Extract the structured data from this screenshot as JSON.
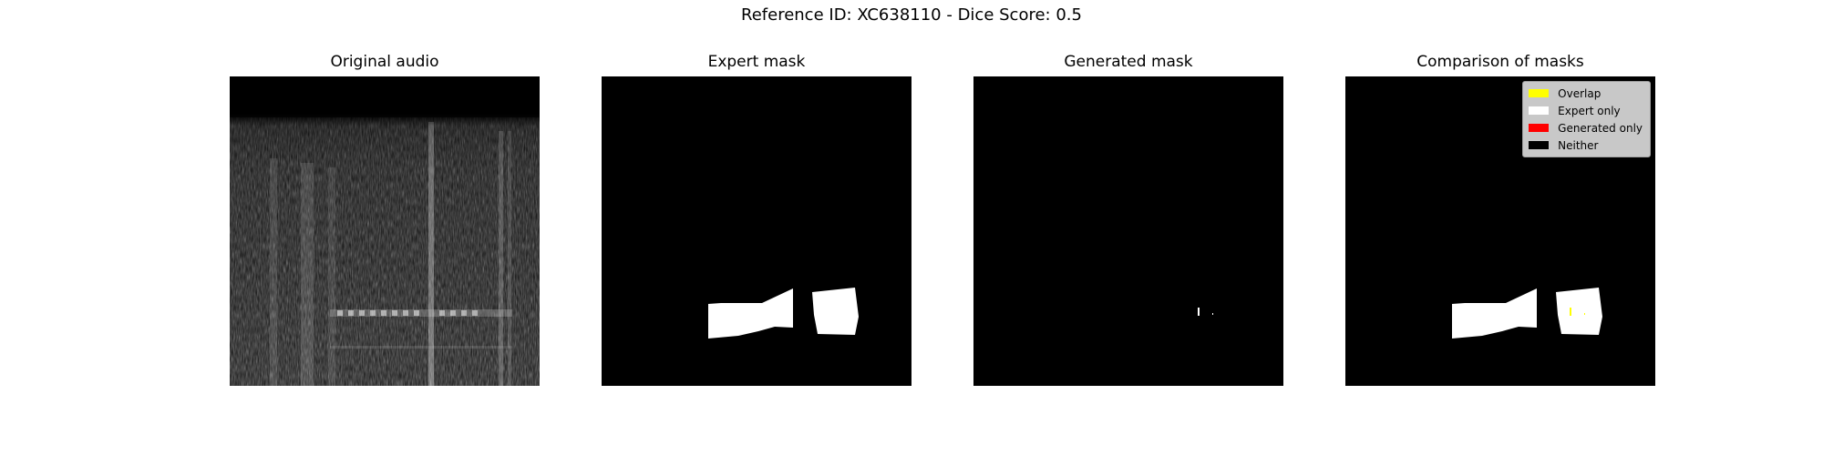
{
  "figure": {
    "title": "Reference ID: XC638110 - Dice Score: 0.5"
  },
  "panels": [
    {
      "title": "Original audio"
    },
    {
      "title": "Expert mask"
    },
    {
      "title": "Generated mask"
    },
    {
      "title": "Comparison of masks"
    }
  ],
  "legend": {
    "items": [
      {
        "label": "Overlap",
        "color": "#ffff00"
      },
      {
        "label": "Expert only",
        "color": "#ffffff"
      },
      {
        "label": "Generated only",
        "color": "#ff0000"
      },
      {
        "label": "Neither",
        "color": "#000000"
      }
    ]
  }
}
